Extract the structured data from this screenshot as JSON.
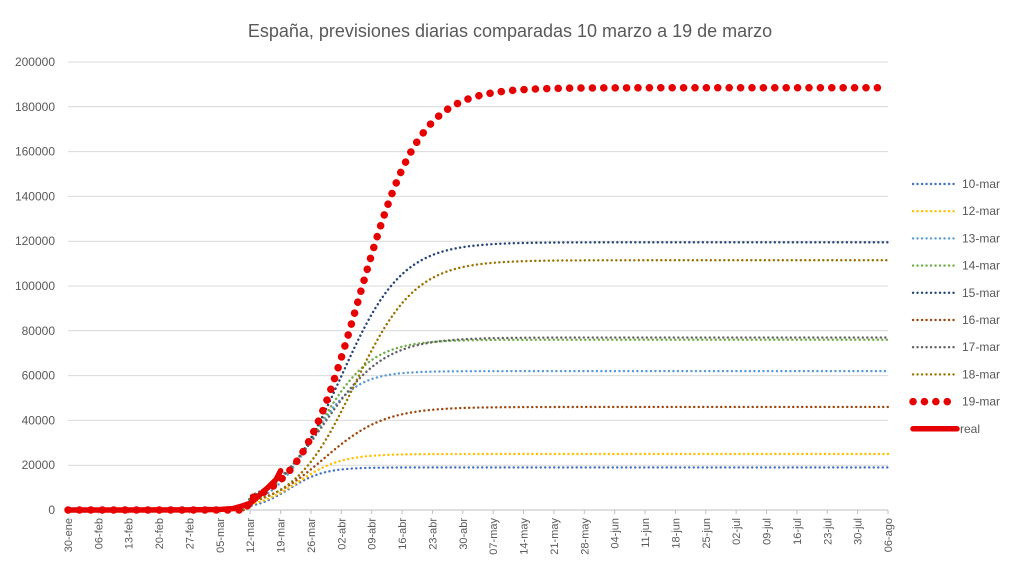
{
  "chart_data": {
    "type": "line",
    "title": "España, previsiones diarias comparadas 10 marzo a 19 de marzo",
    "xlabel": "",
    "ylabel": "",
    "x_tick_labels": [
      "30-ene",
      "06-feb",
      "13-feb",
      "20-feb",
      "27-feb",
      "05-mar",
      "12-mar",
      "19-mar",
      "26-mar",
      "02-abr",
      "09-abr",
      "16-abr",
      "23-abr",
      "30-abr",
      "07-may",
      "14-may",
      "21-may",
      "28-may",
      "04-jun",
      "11-jun",
      "18-jun",
      "25-jun",
      "02-jul",
      "09-jul",
      "16-jul",
      "23-jul",
      "30-jul",
      "06-ago"
    ],
    "x_range": [
      "30-ene",
      "06-ago"
    ],
    "ylim": [
      0,
      200000
    ],
    "y_ticks": [
      0,
      20000,
      40000,
      60000,
      80000,
      100000,
      120000,
      140000,
      160000,
      180000,
      200000
    ],
    "grid": "horizontal",
    "legend_position": "right",
    "series": [
      {
        "name": "10-mar",
        "color": "#4472C4",
        "style": "dotted",
        "plateau": 19000,
        "curve_start": "10-mar",
        "midpoint": "21-mar",
        "width_days": 4
      },
      {
        "name": "12-mar",
        "color": "#FFC000",
        "style": "dotted",
        "plateau": 25000,
        "curve_start": "10-mar",
        "midpoint": "23-mar",
        "width_days": 5
      },
      {
        "name": "13-mar",
        "color": "#5B9BD5",
        "style": "dotted",
        "plateau": 62000,
        "curve_start": "12-mar",
        "midpoint": "26-mar",
        "width_days": 5
      },
      {
        "name": "14-mar",
        "color": "#70AD47",
        "style": "dotted",
        "plateau": 76000,
        "curve_start": "12-mar",
        "midpoint": "28-mar",
        "width_days": 6
      },
      {
        "name": "15-mar",
        "color": "#264478",
        "style": "dotted",
        "plateau": 119500,
        "curve_start": "12-mar",
        "midpoint": "02-abr",
        "width_days": 7
      },
      {
        "name": "16-mar",
        "color": "#9E480E",
        "style": "dotted",
        "plateau": 46000,
        "curve_start": "12-mar",
        "midpoint": "29-mar",
        "width_days": 7
      },
      {
        "name": "17-mar",
        "color": "#636363",
        "style": "dotted",
        "plateau": 77000,
        "curve_start": "12-mar",
        "midpoint": "29-mar",
        "width_days": 7
      },
      {
        "name": "18-mar",
        "color": "#997300",
        "style": "dotted",
        "plateau": 111500,
        "curve_start": "12-mar",
        "midpoint": "05-abr",
        "width_days": 7
      },
      {
        "name": "19-mar",
        "color": "#E60000",
        "style": "large-dots",
        "plateau": 188500,
        "curve_start": "12-mar",
        "midpoint": "06-abr",
        "width_days": 7
      },
      {
        "name": "real",
        "color": "#E60000",
        "style": "thick-line",
        "x": [
          "30-ene",
          "27-feb",
          "05-mar",
          "08-mar",
          "10-mar",
          "12-mar",
          "14-mar",
          "16-mar",
          "18-mar",
          "19-mar"
        ],
        "values": [
          0,
          50,
          250,
          600,
          1700,
          3000,
          6400,
          9900,
          13700,
          17500
        ]
      }
    ]
  }
}
